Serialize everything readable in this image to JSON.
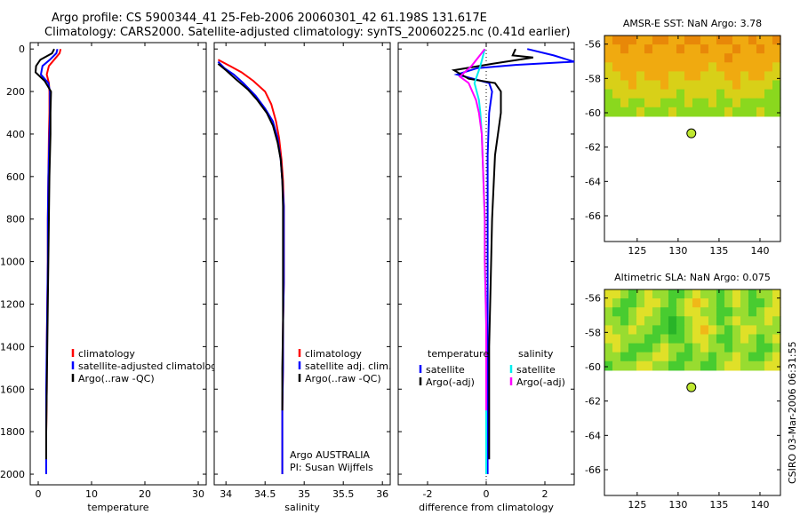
{
  "title_line1": "Argo profile: CS 5900344_41 25-Feb-2006 20060301_42 61.198S 131.617E",
  "title_line2": "Climatology: CARS2000. Satellite-adjusted climatology: synTS_20060225.nc (0.41d earlier)",
  "stamp": "CSIRO 03-Mar-2006 06:31:55",
  "colors": {
    "red": "#ff0000",
    "blue": "#0000ff",
    "black": "#000000",
    "cyan": "#00eeee",
    "magenta": "#ff00ff",
    "marker": "#bfe830"
  },
  "chart_data": [
    {
      "id": "temperature",
      "type": "line",
      "xlabel": "temperature",
      "ylabel": "",
      "xlim": [
        -1.5,
        31.5
      ],
      "ylim": [
        2050,
        -30
      ],
      "xticks": [
        0,
        10,
        20,
        30
      ],
      "yticks": [
        0,
        200,
        400,
        600,
        800,
        1000,
        1200,
        1400,
        1600,
        1800,
        2000
      ],
      "legend": [
        "climatology",
        "satellite-adjusted climatology",
        "Argo(..raw -QC)"
      ],
      "legend_colors": [
        "#ff0000",
        "#0000ff",
        "#000000"
      ],
      "series": [
        {
          "name": "climatology",
          "color": "#ff0000",
          "x": [
            4.2,
            4.0,
            3.0,
            2.0,
            1.6,
            2.0,
            2.1,
            2.1,
            2.0,
            1.9,
            1.8,
            1.8,
            1.7,
            1.6,
            1.6,
            1.5,
            1.5,
            1.5
          ],
          "y": [
            0,
            20,
            50,
            80,
            120,
            160,
            200,
            300,
            400,
            600,
            800,
            1000,
            1200,
            1400,
            1600,
            1800,
            1900,
            2000
          ]
        },
        {
          "name": "satellite-adjusted climatology",
          "color": "#0000ff",
          "x": [
            3.6,
            3.4,
            2.2,
            0.8,
            0.5,
            1.9,
            2.2,
            2.2,
            2.1,
            1.9,
            1.8,
            1.8,
            1.7,
            1.6,
            1.5,
            1.5,
            1.5,
            1.5
          ],
          "y": [
            0,
            20,
            50,
            80,
            120,
            160,
            200,
            300,
            400,
            600,
            800,
            1000,
            1200,
            1400,
            1600,
            1800,
            1900,
            2000
          ]
        },
        {
          "name": "Argo(..raw -QC)",
          "color": "#000000",
          "x": [
            3.0,
            2.6,
            0.4,
            -0.4,
            -0.5,
            1.2,
            2.4,
            2.3,
            2.3,
            2.1,
            2.0,
            1.9,
            1.8,
            1.7,
            1.6,
            1.5,
            1.5
          ],
          "y": [
            0,
            20,
            50,
            80,
            110,
            150,
            200,
            300,
            400,
            600,
            800,
            1000,
            1200,
            1400,
            1600,
            1800,
            1930
          ]
        }
      ]
    },
    {
      "id": "salinity",
      "type": "line",
      "xlabel": "salinity",
      "ylabel": "",
      "xlim": [
        33.85,
        36.1
      ],
      "ylim": [
        2050,
        -30
      ],
      "xticks": [
        34,
        34.5,
        35,
        35.5,
        36
      ],
      "yticks": [
        0,
        200,
        400,
        600,
        800,
        1000,
        1200,
        1400,
        1600,
        1800,
        2000
      ],
      "legend": [
        "climatology",
        "satellite adj. clim.",
        "Argo(..raw -QC)"
      ],
      "legend_colors": [
        "#ff0000",
        "#0000ff",
        "#000000"
      ],
      "annotation": [
        "Argo AUSTRALIA",
        "PI: Susan Wijffels"
      ],
      "series": [
        {
          "name": "climatology",
          "color": "#ff0000",
          "x": [
            33.9,
            34.05,
            34.2,
            34.35,
            34.5,
            34.58,
            34.64,
            34.68,
            34.71,
            34.73,
            34.74,
            34.74,
            34.74,
            34.73,
            34.73,
            34.72,
            34.72,
            34.72
          ],
          "y": [
            50,
            80,
            110,
            150,
            200,
            260,
            340,
            420,
            520,
            620,
            740,
            900,
            1100,
            1300,
            1500,
            1700,
            1900,
            2000
          ]
        },
        {
          "name": "satellite adj. clim.",
          "color": "#0000ff",
          "x": [
            33.9,
            33.98,
            34.1,
            34.22,
            34.38,
            34.5,
            34.6,
            34.66,
            34.7,
            34.72,
            34.74,
            34.74,
            34.74,
            34.73,
            34.73,
            34.72,
            34.72,
            34.72
          ],
          "y": [
            60,
            90,
            120,
            160,
            220,
            280,
            340,
            420,
            520,
            620,
            740,
            900,
            1100,
            1300,
            1500,
            1700,
            1900,
            2000
          ]
        },
        {
          "name": "Argo(..raw -QC)",
          "color": "#000000",
          "x": [
            33.9,
            34.0,
            34.12,
            34.28,
            34.4,
            34.52,
            34.6,
            34.66,
            34.7,
            34.72,
            34.73,
            34.73,
            34.73,
            34.73,
            34.72,
            34.72
          ],
          "y": [
            70,
            100,
            140,
            190,
            240,
            300,
            360,
            440,
            520,
            620,
            740,
            900,
            1100,
            1300,
            1500,
            1700
          ]
        }
      ]
    },
    {
      "id": "difference",
      "type": "line",
      "xlabel": "difference from climatology",
      "ylabel": "",
      "xlim": [
        -3,
        3
      ],
      "ylim": [
        2050,
        -30
      ],
      "xticks": [
        -2,
        0,
        2
      ],
      "yticks": [
        0,
        200,
        400,
        600,
        800,
        1000,
        1200,
        1400,
        1600,
        1800,
        2000
      ],
      "legend_titles": [
        "temperature",
        "salinity"
      ],
      "legend": [
        "satellite",
        "Argo(-adj)",
        "satellite",
        "Argo(-adj)"
      ],
      "legend_colors": [
        "#0000ff",
        "#000000",
        "#00eeee",
        "#ff00ff"
      ],
      "zero_line": true,
      "series": [
        {
          "name": "temperature satellite",
          "color": "#0000ff",
          "x": [
            1.4,
            2.3,
            3.0,
            1.0,
            -0.3,
            -1.0,
            0.1,
            0.2,
            0.1,
            0.05,
            0.05,
            0.05,
            0.05,
            0.05,
            0.05,
            0.05,
            0.05
          ],
          "y": [
            0,
            30,
            60,
            75,
            90,
            120,
            160,
            200,
            300,
            500,
            800,
            1100,
            1400,
            1600,
            1800,
            1900,
            2000
          ]
        },
        {
          "name": "temperature Argo(-adj)",
          "color": "#000000",
          "x": [
            1.0,
            0.9,
            1.6,
            0.2,
            -1.1,
            -0.6,
            0.3,
            0.5,
            0.5,
            0.3,
            0.2,
            0.15,
            0.1,
            0.1,
            0.1,
            0.1,
            0.1
          ],
          "y": [
            0,
            30,
            40,
            70,
            100,
            140,
            160,
            200,
            300,
            500,
            800,
            1100,
            1400,
            1600,
            1800,
            1900,
            1930
          ]
        },
        {
          "name": "salinity satellite",
          "color": "#00eeee",
          "x": [
            -0.05,
            -0.2,
            -0.3,
            -0.4,
            -0.25,
            -0.2,
            -0.15,
            -0.1,
            -0.05,
            -0.05,
            0.0,
            0.0,
            0.0,
            0.0
          ],
          "y": [
            0,
            80,
            120,
            160,
            240,
            300,
            400,
            600,
            800,
            1000,
            1300,
            1600,
            1800,
            2000
          ]
        },
        {
          "name": "salinity Argo(-adj)",
          "color": "#ff00ff",
          "x": [
            -0.05,
            -0.5,
            -0.9,
            -0.6,
            -0.35,
            -0.25,
            -0.15,
            -0.1,
            -0.05,
            -0.05,
            0.0,
            0.0
          ],
          "y": [
            0,
            80,
            130,
            160,
            240,
            300,
            400,
            600,
            800,
            1000,
            1300,
            1700
          ]
        }
      ]
    },
    {
      "id": "sst_map",
      "type": "heatmap",
      "title": "AMSR-E SST: NaN Argo: 3.78",
      "xlim": [
        121,
        142.5
      ],
      "ylim": [
        -67.5,
        -55.5
      ],
      "xticks": [
        125,
        130,
        135,
        140
      ],
      "yticks": [
        -56,
        -58,
        -60,
        -62,
        -64,
        -66
      ],
      "data_lat_min": -60.2,
      "palette": [
        "#3ccb1e",
        "#8ad81e",
        "#d8d018",
        "#f0aa10",
        "#e88808"
      ],
      "rows": [
        [
          3,
          4,
          4,
          4,
          3,
          3,
          4,
          4,
          3,
          3,
          4,
          4,
          3,
          3,
          4,
          4,
          3,
          3,
          4,
          3,
          3,
          4
        ],
        [
          3,
          3,
          4,
          3,
          3,
          4,
          3,
          3,
          3,
          4,
          3,
          3,
          4,
          3,
          3,
          3,
          4,
          3,
          3,
          4,
          3,
          3
        ],
        [
          3,
          3,
          3,
          3,
          3,
          3,
          3,
          3,
          3,
          3,
          3,
          3,
          3,
          3,
          3,
          4,
          3,
          3,
          3,
          3,
          3,
          3
        ],
        [
          2,
          3,
          3,
          3,
          3,
          3,
          3,
          3,
          3,
          3,
          3,
          3,
          3,
          2,
          3,
          3,
          3,
          3,
          3,
          3,
          3,
          2
        ],
        [
          2,
          2,
          3,
          3,
          2,
          3,
          3,
          3,
          2,
          2,
          3,
          3,
          2,
          2,
          2,
          3,
          3,
          2,
          3,
          3,
          2,
          2
        ],
        [
          2,
          2,
          2,
          3,
          2,
          2,
          2,
          3,
          2,
          2,
          2,
          2,
          2,
          2,
          2,
          2,
          3,
          2,
          2,
          2,
          2,
          1
        ],
        [
          1,
          2,
          2,
          2,
          2,
          2,
          2,
          2,
          2,
          1,
          2,
          2,
          2,
          2,
          1,
          2,
          2,
          2,
          2,
          2,
          1,
          1
        ],
        [
          1,
          1,
          2,
          1,
          1,
          2,
          2,
          1,
          1,
          1,
          2,
          1,
          1,
          2,
          1,
          1,
          2,
          1,
          1,
          1,
          1,
          1
        ],
        [
          1,
          1,
          1,
          1,
          2,
          1,
          1,
          1,
          2,
          1,
          1,
          1,
          1,
          1,
          1,
          2,
          1,
          1,
          1,
          2,
          1,
          1
        ]
      ],
      "marker": {
        "lon": 131.617,
        "lat": -61.198
      }
    },
    {
      "id": "sla_map",
      "type": "heatmap",
      "title": "Altimetric SLA: NaN Argo: 0.075",
      "xlim": [
        121,
        142.5
      ],
      "ylim": [
        -67.5,
        -55.5
      ],
      "xticks": [
        125,
        130,
        135,
        140
      ],
      "yticks": [
        -56,
        -58,
        -60,
        -62,
        -64,
        -66
      ],
      "data_lat_min": -60.2,
      "palette": [
        "#28b428",
        "#48cc30",
        "#98dc30",
        "#e0e028",
        "#f0b818"
      ],
      "rows": [
        [
          3,
          3,
          2,
          1,
          2,
          3,
          2,
          2,
          1,
          1,
          2,
          3,
          2,
          2,
          1,
          2,
          3,
          2,
          1,
          2,
          2,
          3
        ],
        [
          3,
          2,
          1,
          1,
          2,
          3,
          3,
          2,
          1,
          2,
          3,
          4,
          3,
          2,
          1,
          2,
          3,
          2,
          1,
          1,
          2,
          3
        ],
        [
          2,
          1,
          1,
          2,
          3,
          3,
          2,
          1,
          1,
          2,
          3,
          3,
          2,
          2,
          1,
          1,
          2,
          2,
          1,
          2,
          3,
          3
        ],
        [
          2,
          2,
          1,
          2,
          3,
          2,
          2,
          1,
          0,
          1,
          2,
          3,
          3,
          2,
          1,
          2,
          3,
          2,
          2,
          2,
          3,
          2
        ],
        [
          3,
          2,
          2,
          3,
          2,
          2,
          1,
          1,
          0,
          1,
          2,
          3,
          4,
          3,
          2,
          1,
          2,
          3,
          3,
          2,
          2,
          2
        ],
        [
          3,
          3,
          2,
          2,
          2,
          1,
          1,
          2,
          1,
          1,
          2,
          3,
          3,
          2,
          1,
          1,
          2,
          3,
          2,
          1,
          2,
          3
        ],
        [
          2,
          3,
          2,
          1,
          1,
          1,
          2,
          3,
          2,
          2,
          1,
          2,
          3,
          2,
          2,
          1,
          2,
          2,
          2,
          1,
          1,
          2
        ],
        [
          2,
          2,
          1,
          1,
          2,
          2,
          3,
          3,
          2,
          1,
          1,
          2,
          2,
          1,
          2,
          2,
          3,
          2,
          1,
          1,
          2,
          3
        ],
        [
          1,
          2,
          2,
          2,
          3,
          3,
          2,
          2,
          1,
          1,
          2,
          2,
          1,
          1,
          2,
          3,
          3,
          2,
          2,
          2,
          3,
          3
        ]
      ],
      "marker": {
        "lon": 131.617,
        "lat": -61.198
      }
    }
  ]
}
